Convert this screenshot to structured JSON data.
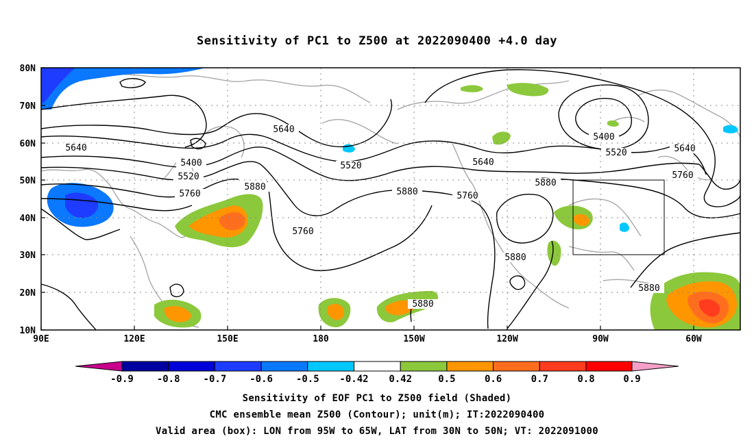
{
  "map": {
    "title": "Sensitivity of PC1 to Z500 at 2022090400 +4.0 day",
    "lat_labels": [
      "80N",
      "70N",
      "60N",
      "50N",
      "40N",
      "30N",
      "20N",
      "10N"
    ],
    "lon_labels": [
      "90E",
      "120E",
      "150E",
      "180",
      "150W",
      "120W",
      "90W",
      "60W"
    ],
    "contour_labels": [
      "5640",
      "5400",
      "5520",
      "5760",
      "5880",
      "5640",
      "5520",
      "5880",
      "5760",
      "5640",
      "5760",
      "5880",
      "5880",
      "5880",
      "5400",
      "5520",
      "5640",
      "5760",
      "5880"
    ],
    "box": {
      "lon_from": "95W",
      "lon_to": "65W",
      "lat_from": "30N",
      "lat_to": "50N"
    }
  },
  "colorbar": {
    "tick_labels": [
      "-0.9",
      "-0.8",
      "-0.7",
      "-0.6",
      "-0.5",
      "-0.42",
      "0.42",
      "0.5",
      "0.6",
      "0.7",
      "0.8",
      "0.9"
    ],
    "colors": [
      "#c8008c",
      "#0000a0",
      "#0000d8",
      "#1e3cff",
      "#0a78ff",
      "#00c8ff",
      "#ffffff",
      "#8cc83c",
      "#ff9600",
      "#ff6e1e",
      "#ff3c1e",
      "#ff0000",
      "#f5a0c8"
    ]
  },
  "captions": {
    "line1": "Sensitivity of EOF PC1 to Z500 field (Shaded)",
    "line2": "CMC ensemble mean Z500 (Contour); unit(m); IT:2022090400",
    "line3": "Valid area (box): LON from 95W to 65W, LAT from 30N to 50N; VT: 2022091000"
  }
}
